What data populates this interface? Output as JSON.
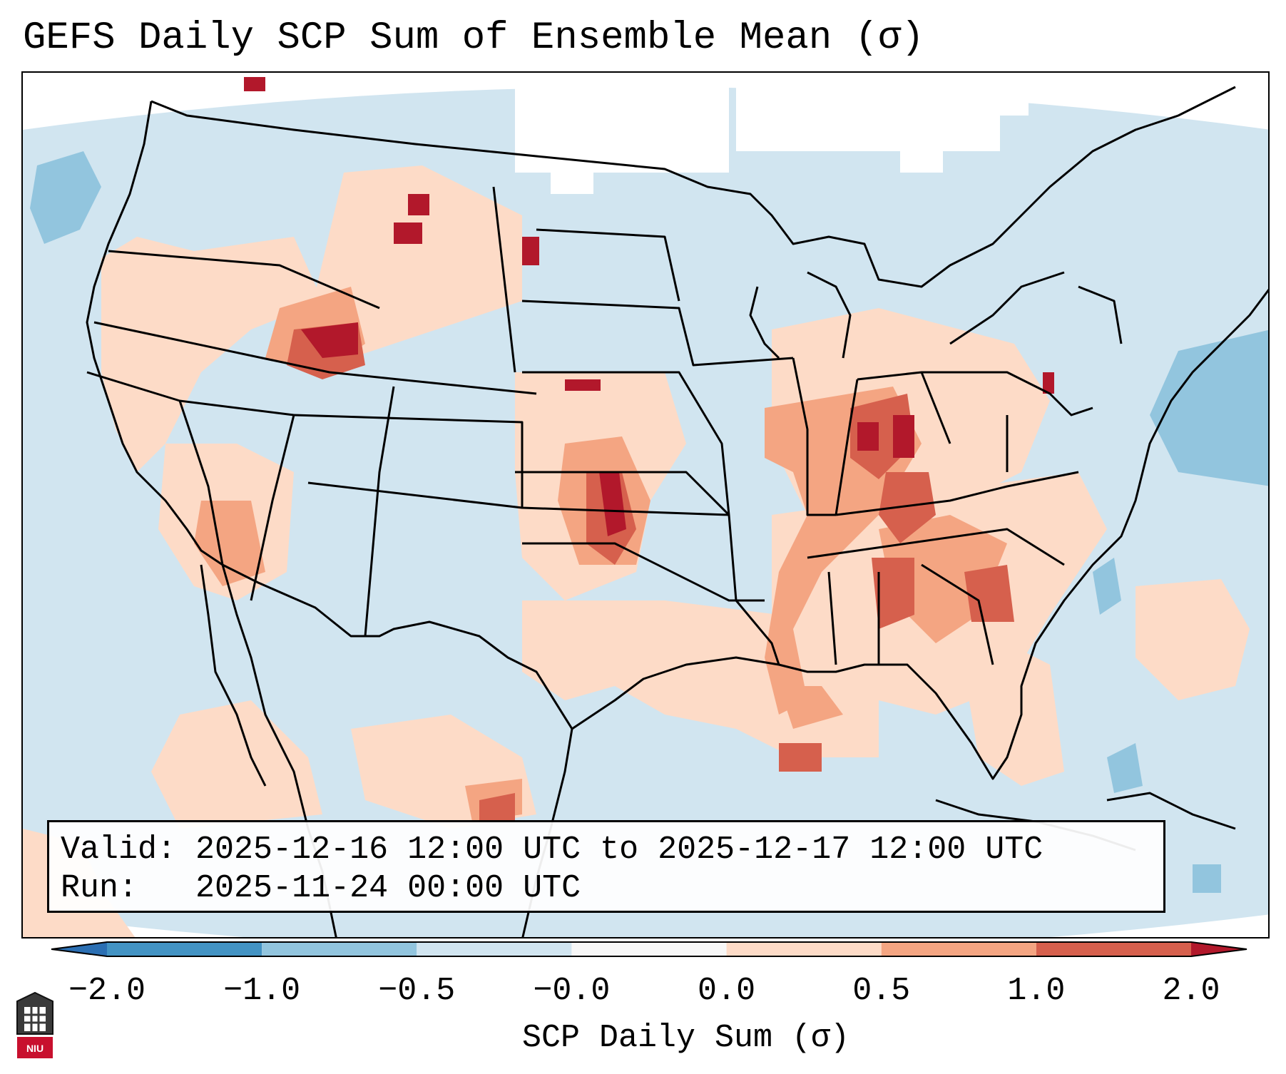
{
  "title": "GEFS Daily SCP Sum of Ensemble Mean (σ)",
  "info": {
    "valid_label": "Valid:",
    "valid_text": "2025-12-16 12:00 UTC to 2025-12-17 12:00 UTC",
    "run_label": "Run:",
    "run_text": "2025-11-24 00:00 UTC"
  },
  "colorbar": {
    "label": "SCP Daily Sum (σ)",
    "ticks": [
      "−2.0",
      "−1.0",
      "−0.5",
      "−0.0",
      "0.0",
      "0.5",
      "1.0",
      "2.0"
    ],
    "bins": [
      {
        "range": "< -2.0",
        "color": "#2b6fb3"
      },
      {
        "range": "-2.0 to -1.0",
        "color": "#4393c3"
      },
      {
        "range": "-1.0 to -0.5",
        "color": "#92c5de"
      },
      {
        "range": "-0.5 to -0.0",
        "color": "#d1e5f0"
      },
      {
        "range": "-0.0 to 0.0",
        "color": "#f7f7f7"
      },
      {
        "range": "0.0 to 0.5",
        "color": "#fddbc7"
      },
      {
        "range": "0.5 to 1.0",
        "color": "#f4a582"
      },
      {
        "range": "1.0 to 2.0",
        "color": "#d6604d"
      },
      {
        "range": "> 2.0",
        "color": "#b2182b"
      }
    ]
  },
  "logo": {
    "text": "NIU"
  },
  "map_colors": {
    "background": "#d1e5f0",
    "outside": "#ffffff",
    "borders": "#000000"
  }
}
